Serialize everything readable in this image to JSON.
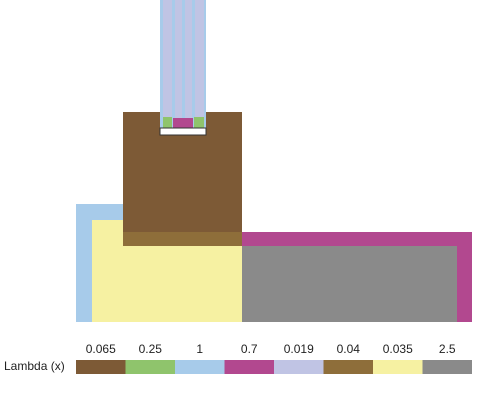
{
  "legend": {
    "label": "Lambda (x)",
    "items": [
      {
        "value": 0.065,
        "color": "#7d5a36"
      },
      {
        "value": 0.25,
        "color": "#8fc46c"
      },
      {
        "value": 1,
        "color": "#a7cbea"
      },
      {
        "value": 0.7,
        "color": "#b2488f"
      },
      {
        "value": 0.019,
        "color": "#c0c4e4"
      },
      {
        "value": 0.04,
        "color": "#8e6e3a"
      },
      {
        "value": 0.035,
        "color": "#f6f1a2"
      },
      {
        "value": 2.5,
        "color": "#8a8a8a"
      }
    ]
  }
}
